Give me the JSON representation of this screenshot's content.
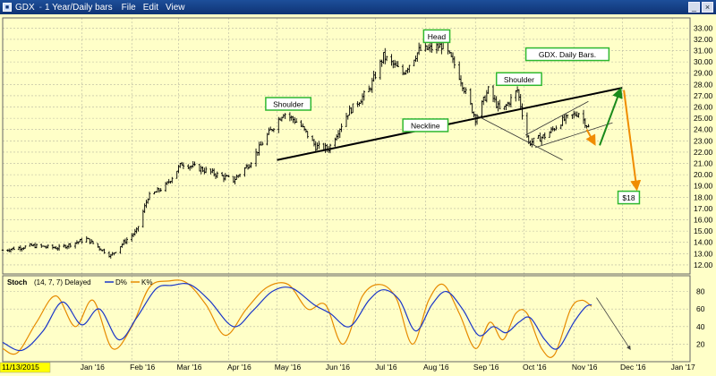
{
  "window": {
    "symbol": "GDX",
    "separator": "-",
    "timeframe": "1 Year/Daily bars",
    "menu": [
      "File",
      "Edit",
      "View"
    ]
  },
  "colors": {
    "background": "#ffffc8",
    "bars": "#000000",
    "neckline": "#000000",
    "label_border": "#2fb82f",
    "up_arrow": "#1a8a1a",
    "down_arrow": "#f08c00",
    "stoch_d": "#1a36c8",
    "stoch_k": "#e68a00"
  },
  "chart_data": [
    {
      "type": "bar",
      "title": "GDX. Daily Bars.",
      "y_ticks": [
        "12.00",
        "13.00",
        "14.00",
        "15.00",
        "16.00",
        "17.00",
        "18.00",
        "19.00",
        "20.00",
        "21.00",
        "22.00",
        "23.00",
        "24.00",
        "25.00",
        "26.00",
        "27.00",
        "28.00",
        "29.00",
        "30.00",
        "31.00",
        "32.00",
        "33.00"
      ],
      "ylim": [
        11.2,
        33.9
      ],
      "grid": true,
      "x_ticks": [
        "11/13/2015",
        "Jan '16",
        "Feb '16",
        "Mar '16",
        "Apr '16",
        "May '16",
        "Jun '16",
        "Jul '16",
        "Aug '16",
        "Sep '16",
        "Oct '16",
        "Nov '16",
        "Dec '16",
        "Jan '17"
      ],
      "price_path": [
        {
          "date": "2015-11-13",
          "value": 13.3
        },
        {
          "date": "2015-12-01",
          "value": 13.7
        },
        {
          "date": "2015-12-18",
          "value": 13.5
        },
        {
          "date": "2016-01-04",
          "value": 14.3
        },
        {
          "date": "2016-01-12",
          "value": 13.5
        },
        {
          "date": "2016-01-19",
          "value": 12.8
        },
        {
          "date": "2016-01-27",
          "value": 14.0
        },
        {
          "date": "2016-02-04",
          "value": 15.0
        },
        {
          "date": "2016-02-11",
          "value": 18.0
        },
        {
          "date": "2016-02-22",
          "value": 19.0
        },
        {
          "date": "2016-03-03",
          "value": 21.0
        },
        {
          "date": "2016-03-15",
          "value": 20.5
        },
        {
          "date": "2016-04-04",
          "value": 19.5
        },
        {
          "date": "2016-04-14",
          "value": 21.0
        },
        {
          "date": "2016-04-25",
          "value": 23.5
        },
        {
          "date": "2016-05-05",
          "value": 25.5
        },
        {
          "date": "2016-05-15",
          "value": 24.5
        },
        {
          "date": "2016-05-25",
          "value": 22.5
        },
        {
          "date": "2016-06-02",
          "value": 22.3
        },
        {
          "date": "2016-06-14",
          "value": 25.5
        },
        {
          "date": "2016-06-27",
          "value": 27.5
        },
        {
          "date": "2016-07-06",
          "value": 30.5
        },
        {
          "date": "2016-07-18",
          "value": 29.0
        },
        {
          "date": "2016-07-28",
          "value": 31.0
        },
        {
          "date": "2016-08-05",
          "value": 31.2
        },
        {
          "date": "2016-08-12",
          "value": 31.5
        },
        {
          "date": "2016-08-20",
          "value": 29.5
        },
        {
          "date": "2016-09-01",
          "value": 25.0
        },
        {
          "date": "2016-09-09",
          "value": 27.5
        },
        {
          "date": "2016-09-17",
          "value": 25.5
        },
        {
          "date": "2016-09-27",
          "value": 27.5
        },
        {
          "date": "2016-10-04",
          "value": 22.8
        },
        {
          "date": "2016-10-15",
          "value": 23.5
        },
        {
          "date": "2016-10-25",
          "value": 24.8
        },
        {
          "date": "2016-11-04",
          "value": 25.5
        },
        {
          "date": "2016-11-10",
          "value": 24.2
        }
      ],
      "annotations": [
        {
          "text": "Shoulder",
          "date": "2016-05-08",
          "value": 26.2
        },
        {
          "text": "Head",
          "date": "2016-08-08",
          "value": 32.2
        },
        {
          "text": "Shoulder",
          "date": "2016-09-28",
          "value": 28.4
        },
        {
          "text": "Neckline",
          "date": "2016-08-01",
          "value": 24.3
        },
        {
          "text": "GDX. Daily Bars.",
          "date": "2016-10-28",
          "value": 30.6
        },
        {
          "text": "$18",
          "date": "2016-12-05",
          "value": 17.9
        }
      ],
      "neckline": [
        {
          "date": "2016-05-01",
          "value": 21.3
        },
        {
          "date": "2016-12-01",
          "value": 27.7
        }
      ],
      "channel_lines": [
        [
          {
            "date": "2016-09-01",
            "value": 25.3
          },
          {
            "date": "2016-10-25",
            "value": 21.3
          }
        ],
        [
          {
            "date": "2016-10-02",
            "value": 23.5
          },
          {
            "date": "2016-11-10",
            "value": 26.5
          }
        ],
        [
          {
            "date": "2016-10-08",
            "value": 22.4
          },
          {
            "date": "2016-11-25",
            "value": 24.6
          }
        ]
      ],
      "arrows": [
        {
          "color": "down",
          "from": {
            "date": "2016-11-09",
            "value": 24.0
          },
          "to": {
            "date": "2016-11-14",
            "value": 22.7
          }
        },
        {
          "color": "up",
          "from": {
            "date": "2016-11-17",
            "value": 22.6
          },
          "to": {
            "date": "2016-11-30",
            "value": 27.6
          }
        },
        {
          "color": "down",
          "from": {
            "date": "2016-12-02",
            "value": 27.5
          },
          "to": {
            "date": "2016-12-10",
            "value": 18.7
          }
        }
      ]
    },
    {
      "type": "line",
      "title": "Stoch",
      "params": "(14, 7, 7) Delayed",
      "legend": [
        "D%",
        "K%"
      ],
      "y_ticks": [
        "20",
        "40",
        "60",
        "80"
      ],
      "ylim": [
        0,
        98
      ],
      "series": [
        {
          "name": "D%",
          "points": [
            {
              "date": "2015-11-13",
              "value": 22
            },
            {
              "date": "2015-11-25",
              "value": 13
            },
            {
              "date": "2015-12-08",
              "value": 35
            },
            {
              "date": "2015-12-20",
              "value": 68
            },
            {
              "date": "2016-01-01",
              "value": 42
            },
            {
              "date": "2016-01-12",
              "value": 60
            },
            {
              "date": "2016-01-24",
              "value": 25
            },
            {
              "date": "2016-02-04",
              "value": 50
            },
            {
              "date": "2016-02-16",
              "value": 83
            },
            {
              "date": "2016-02-26",
              "value": 87
            },
            {
              "date": "2016-03-08",
              "value": 88
            },
            {
              "date": "2016-03-20",
              "value": 70
            },
            {
              "date": "2016-04-04",
              "value": 40
            },
            {
              "date": "2016-04-16",
              "value": 58
            },
            {
              "date": "2016-04-28",
              "value": 80
            },
            {
              "date": "2016-05-10",
              "value": 84
            },
            {
              "date": "2016-05-24",
              "value": 65
            },
            {
              "date": "2016-06-03",
              "value": 55
            },
            {
              "date": "2016-06-15",
              "value": 40
            },
            {
              "date": "2016-06-27",
              "value": 70
            },
            {
              "date": "2016-07-06",
              "value": 82
            },
            {
              "date": "2016-07-16",
              "value": 70
            },
            {
              "date": "2016-07-26",
              "value": 35
            },
            {
              "date": "2016-08-05",
              "value": 65
            },
            {
              "date": "2016-08-14",
              "value": 80
            },
            {
              "date": "2016-08-24",
              "value": 60
            },
            {
              "date": "2016-09-03",
              "value": 30
            },
            {
              "date": "2016-09-12",
              "value": 40
            },
            {
              "date": "2016-09-20",
              "value": 33
            },
            {
              "date": "2016-09-28",
              "value": 45
            },
            {
              "date": "2016-10-05",
              "value": 50
            },
            {
              "date": "2016-10-14",
              "value": 25
            },
            {
              "date": "2016-10-22",
              "value": 15
            },
            {
              "date": "2016-11-01",
              "value": 45
            },
            {
              "date": "2016-11-08",
              "value": 62
            },
            {
              "date": "2016-11-12",
              "value": 65
            }
          ]
        },
        {
          "name": "K%",
          "points": [
            {
              "date": "2015-11-13",
              "value": 15
            },
            {
              "date": "2015-11-22",
              "value": 10
            },
            {
              "date": "2015-12-04",
              "value": 45
            },
            {
              "date": "2015-12-16",
              "value": 75
            },
            {
              "date": "2015-12-28",
              "value": 40
            },
            {
              "date": "2016-01-08",
              "value": 70
            },
            {
              "date": "2016-01-20",
              "value": 15
            },
            {
              "date": "2016-02-01",
              "value": 40
            },
            {
              "date": "2016-02-12",
              "value": 85
            },
            {
              "date": "2016-02-24",
              "value": 92
            },
            {
              "date": "2016-03-06",
              "value": 90
            },
            {
              "date": "2016-03-18",
              "value": 65
            },
            {
              "date": "2016-03-30",
              "value": 30
            },
            {
              "date": "2016-04-12",
              "value": 60
            },
            {
              "date": "2016-04-25",
              "value": 85
            },
            {
              "date": "2016-05-08",
              "value": 88
            },
            {
              "date": "2016-05-20",
              "value": 60
            },
            {
              "date": "2016-05-31",
              "value": 65
            },
            {
              "date": "2016-06-11",
              "value": 20
            },
            {
              "date": "2016-06-23",
              "value": 75
            },
            {
              "date": "2016-07-04",
              "value": 88
            },
            {
              "date": "2016-07-14",
              "value": 72
            },
            {
              "date": "2016-07-24",
              "value": 20
            },
            {
              "date": "2016-08-03",
              "value": 70
            },
            {
              "date": "2016-08-12",
              "value": 88
            },
            {
              "date": "2016-08-22",
              "value": 55
            },
            {
              "date": "2016-09-01",
              "value": 15
            },
            {
              "date": "2016-09-10",
              "value": 45
            },
            {
              "date": "2016-09-18",
              "value": 25
            },
            {
              "date": "2016-09-26",
              "value": 55
            },
            {
              "date": "2016-10-03",
              "value": 55
            },
            {
              "date": "2016-10-12",
              "value": 15
            },
            {
              "date": "2016-10-20",
              "value": 8
            },
            {
              "date": "2016-10-30",
              "value": 60
            },
            {
              "date": "2016-11-06",
              "value": 70
            },
            {
              "date": "2016-11-12",
              "value": 63
            }
          ]
        }
      ],
      "arrow": {
        "from": {
          "date": "2016-11-15",
          "value": 73
        },
        "to": {
          "date": "2016-12-06",
          "value": 14
        }
      }
    }
  ]
}
